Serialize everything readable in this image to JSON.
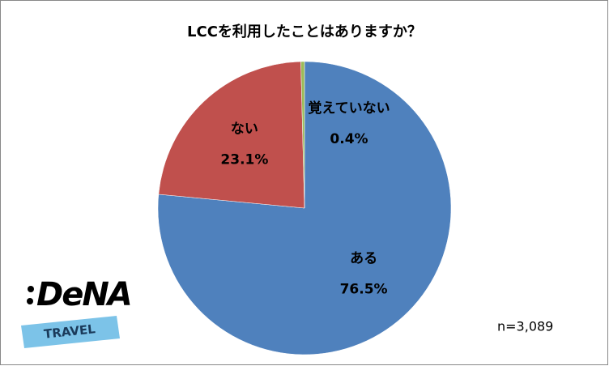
{
  "chart_data": {
    "type": "pie",
    "title": "LCCを利用したことはありますか？",
    "categories": [
      "ある",
      "ない",
      "覚えていない"
    ],
    "values": [
      76.5,
      23.1,
      0.4
    ],
    "value_labels": [
      "76.5%",
      "23.1%",
      "0.4%"
    ],
    "colors": [
      "#4f81bd",
      "#c0504d",
      "#9bbb59"
    ],
    "annotation": "n=3,089"
  },
  "logo": {
    "name": "DeNA",
    "sub": "TRAVEL"
  }
}
